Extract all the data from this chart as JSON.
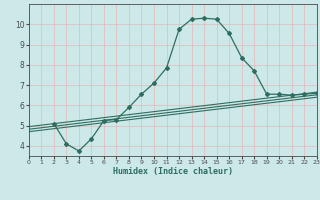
{
  "xlabel": "Humidex (Indice chaleur)",
  "bg_color": "#cce8e8",
  "grid_color": "#e8b8b8",
  "line_color": "#2e6e60",
  "axis_color": "#4a4a4a",
  "xlim": [
    0,
    23
  ],
  "ylim": [
    3.5,
    11.0
  ],
  "yticks": [
    4,
    5,
    6,
    7,
    8,
    9,
    10
  ],
  "xticks": [
    0,
    1,
    2,
    3,
    4,
    5,
    6,
    7,
    8,
    9,
    10,
    11,
    12,
    13,
    14,
    15,
    16,
    17,
    18,
    19,
    20,
    21,
    22,
    23
  ],
  "series_main": {
    "x": [
      2,
      3,
      4,
      5,
      6,
      7,
      8,
      9,
      10,
      11,
      12,
      13,
      14,
      15,
      16,
      17,
      18,
      19,
      20,
      21,
      22,
      23
    ],
    "y": [
      5.1,
      4.1,
      3.75,
      4.35,
      5.25,
      5.3,
      5.9,
      6.55,
      7.1,
      7.85,
      9.75,
      10.25,
      10.3,
      10.25,
      9.55,
      8.35,
      7.7,
      6.55,
      6.55,
      6.5,
      6.55,
      6.6
    ]
  },
  "series_lines": [
    {
      "x": [
        0,
        23
      ],
      "y": [
        4.95,
        6.65
      ]
    },
    {
      "x": [
        0,
        23
      ],
      "y": [
        4.82,
        6.52
      ]
    },
    {
      "x": [
        0,
        23
      ],
      "y": [
        4.7,
        6.4
      ]
    }
  ]
}
